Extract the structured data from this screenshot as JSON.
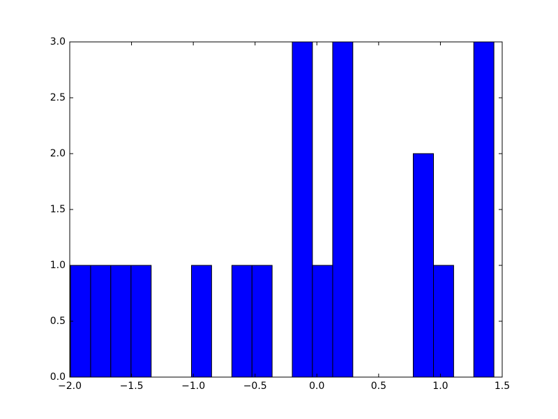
{
  "chart_data": {
    "type": "histogram",
    "bins": [
      -1.994,
      -1.831,
      -1.668,
      -1.504,
      -1.341,
      -1.178,
      -1.015,
      -0.852,
      -0.688,
      -0.525,
      -0.362,
      -0.199,
      -0.036,
      0.128,
      0.291,
      0.454,
      0.617,
      0.78,
      0.944,
      1.107,
      1.27,
      1.433
    ],
    "values": [
      1,
      1,
      1,
      1,
      0,
      0,
      1,
      0,
      1,
      1,
      0,
      3,
      1,
      3,
      0,
      0,
      0,
      2,
      1,
      0,
      3
    ],
    "color": "#0000ff",
    "xlim": [
      -2,
      1.5
    ],
    "xticks": [
      {
        "value": -2,
        "label": "−2.0"
      },
      {
        "value": -1.5,
        "label": "−1.5"
      },
      {
        "value": -1,
        "label": "−1.0"
      },
      {
        "value": -0.5,
        "label": "−0.5"
      },
      {
        "value": 0,
        "label": "0.0"
      },
      0.5,
      {
        "value": 1,
        "label": "1.0"
      },
      1.5
    ],
    "ylim": [
      0,
      3
    ],
    "yticks": [
      {
        "value": 0,
        "label": "0.0"
      },
      0.5,
      {
        "value": 1,
        "label": "1.0"
      },
      1.5,
      {
        "value": 2,
        "label": "2.0"
      },
      2.5,
      {
        "value": 3,
        "label": "3.0"
      }
    ]
  }
}
